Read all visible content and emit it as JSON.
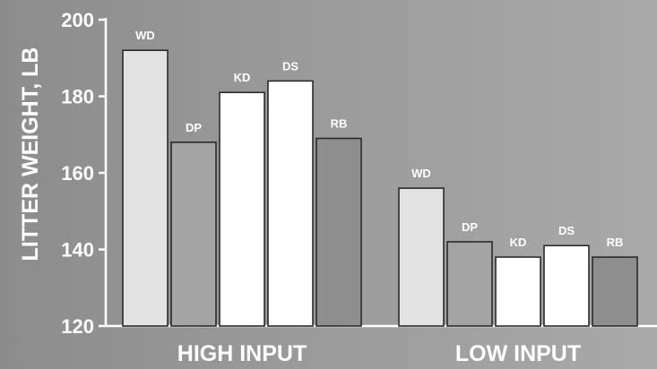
{
  "chart_data": {
    "type": "bar",
    "ylabel": "LITTER WEIGHT, LB",
    "ylim": [
      120,
      200
    ],
    "yticks": [
      120,
      140,
      160,
      180,
      200
    ],
    "grid": false,
    "groups": [
      {
        "label": "HIGH INPUT",
        "bars": [
          {
            "name": "WD",
            "value": 192,
            "color": "#e3e3e3"
          },
          {
            "name": "DP",
            "value": 168,
            "color": "#a4a4a4"
          },
          {
            "name": "KD",
            "value": 181,
            "color": "#ffffff"
          },
          {
            "name": "DS",
            "value": 184,
            "color": "#ffffff"
          },
          {
            "name": "RB",
            "value": 169,
            "color": "#8e8e8e"
          }
        ]
      },
      {
        "label": "LOW INPUT",
        "bars": [
          {
            "name": "WD",
            "value": 156,
            "color": "#e3e3e3"
          },
          {
            "name": "DP",
            "value": 142,
            "color": "#a4a4a4"
          },
          {
            "name": "KD",
            "value": 138,
            "color": "#ffffff"
          },
          {
            "name": "DS",
            "value": 141,
            "color": "#ffffff"
          },
          {
            "name": "RB",
            "value": 138,
            "color": "#8e8e8e"
          }
        ]
      }
    ]
  }
}
